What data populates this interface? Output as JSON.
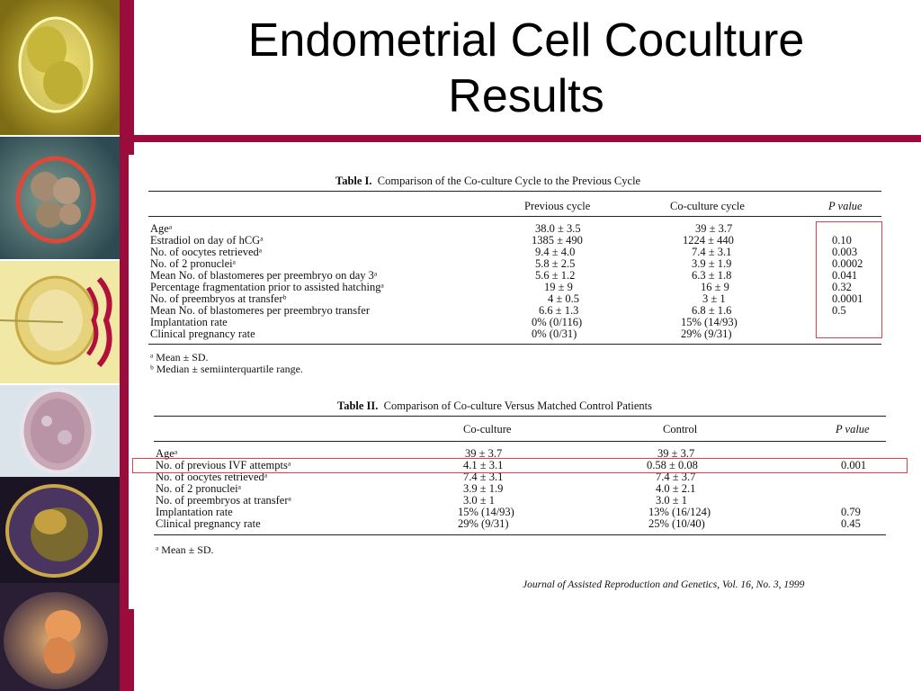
{
  "slide": {
    "title_line1": "Endometrial Cell Coculture",
    "title_line2": "Results"
  },
  "table1": {
    "caption_label": "Table I.",
    "caption_text": "Comparison of the Co-culture Cycle to the Previous Cycle",
    "headers": [
      "Previous cycle",
      "Co-culture cycle",
      "P value"
    ],
    "rows": [
      {
        "label": "Ageᵃ",
        "prev": "38.0 ± 3.5",
        "co": "39 ± 3.7",
        "p": ""
      },
      {
        "label": "Estradiol on day of hCGᵃ",
        "prev": "1385 ± 490",
        "co": "1224 ± 440",
        "p": "0.10"
      },
      {
        "label": "No. of oocytes retrievedᵃ",
        "prev": "9.4 ± 4.0",
        "co": "7.4 ± 3.1",
        "p": "0.003"
      },
      {
        "label": "No. of 2 pronucleiᵃ",
        "prev": "5.8 ± 2.5",
        "co": "3.9 ± 1.9",
        "p": "0.0002"
      },
      {
        "label": "Mean No. of blastomeres per preembryo on day 3ᵃ",
        "prev": "5.6 ± 1.2",
        "co": "6.3 ± 1.8",
        "p": "0.041"
      },
      {
        "label": "Percentage fragmentation prior to assisted hatchingᵃ",
        "prev": "19 ± 9",
        "co": "16 ± 9",
        "p": "0.32"
      },
      {
        "label": "No. of preembryos at transferᵇ",
        "prev": "4 ± 0.5",
        "co": "3 ± 1",
        "p": "0.0001"
      },
      {
        "label": "Mean No. of blastomeres per preembryo transfer",
        "prev": "6.6 ± 1.3",
        "co": "6.8 ± 1.6",
        "p": "0.5"
      },
      {
        "label": "Implantation rate",
        "prev": "0% (0/116)",
        "co": "15% (14/93)",
        "p": ""
      },
      {
        "label": "Clinical pregnancy rate",
        "prev": "0% (0/31)",
        "co": "29% (9/31)",
        "p": ""
      }
    ],
    "footnotes": [
      "ᵃ Mean ± SD.",
      "ᵇ Median ± semiinterquartile range."
    ]
  },
  "table2": {
    "caption_label": "Table II.",
    "caption_text": "Comparison of Co-culture Versus Matched Control Patients",
    "headers": [
      "Co-culture",
      "Control",
      "P value"
    ],
    "rows": [
      {
        "label": "Ageᵃ",
        "co": "39 ± 3.7",
        "ctrl": "39 ± 3.7",
        "p": ""
      },
      {
        "label": "No. of previous IVF attemptsᵃ",
        "co": "4.1 ± 3.1",
        "ctrl": "0.58 ± 0.08",
        "p": "0.001"
      },
      {
        "label": "No. of oocytes retrievedᵃ",
        "co": "7.4 ± 3.1",
        "ctrl": "7.4 ± 3.7",
        "p": ""
      },
      {
        "label": "No. of 2 pronucleiᵃ",
        "co": "3.9 ± 1.9",
        "ctrl": "4.0 ± 2.1",
        "p": ""
      },
      {
        "label": "No. of preembryos at transferᵃ",
        "co": "3.0 ± 1",
        "ctrl": "3.0 ± 1",
        "p": ""
      },
      {
        "label": "Implantation rate",
        "co": "15% (14/93)",
        "ctrl": "13% (16/124)",
        "p": "0.79"
      },
      {
        "label": "Clinical pregnancy rate",
        "co": "29% (9/31)",
        "ctrl": "25% (10/40)",
        "p": "0.45"
      }
    ],
    "footnotes": [
      "ᵃ Mean ± SD."
    ]
  },
  "citation": "Journal of Assisted Reproduction and Genetics, Vol. 16, No. 3, 1999",
  "colors": {
    "accent": "#9b0c3c",
    "highlight": "#e0404a"
  },
  "strip_images": [
    "two-cell-embryo-image",
    "four-cell-embryo-image",
    "icsi-injection-image",
    "blastocyst-image",
    "hatching-blastocyst-image",
    "fetus-image"
  ]
}
